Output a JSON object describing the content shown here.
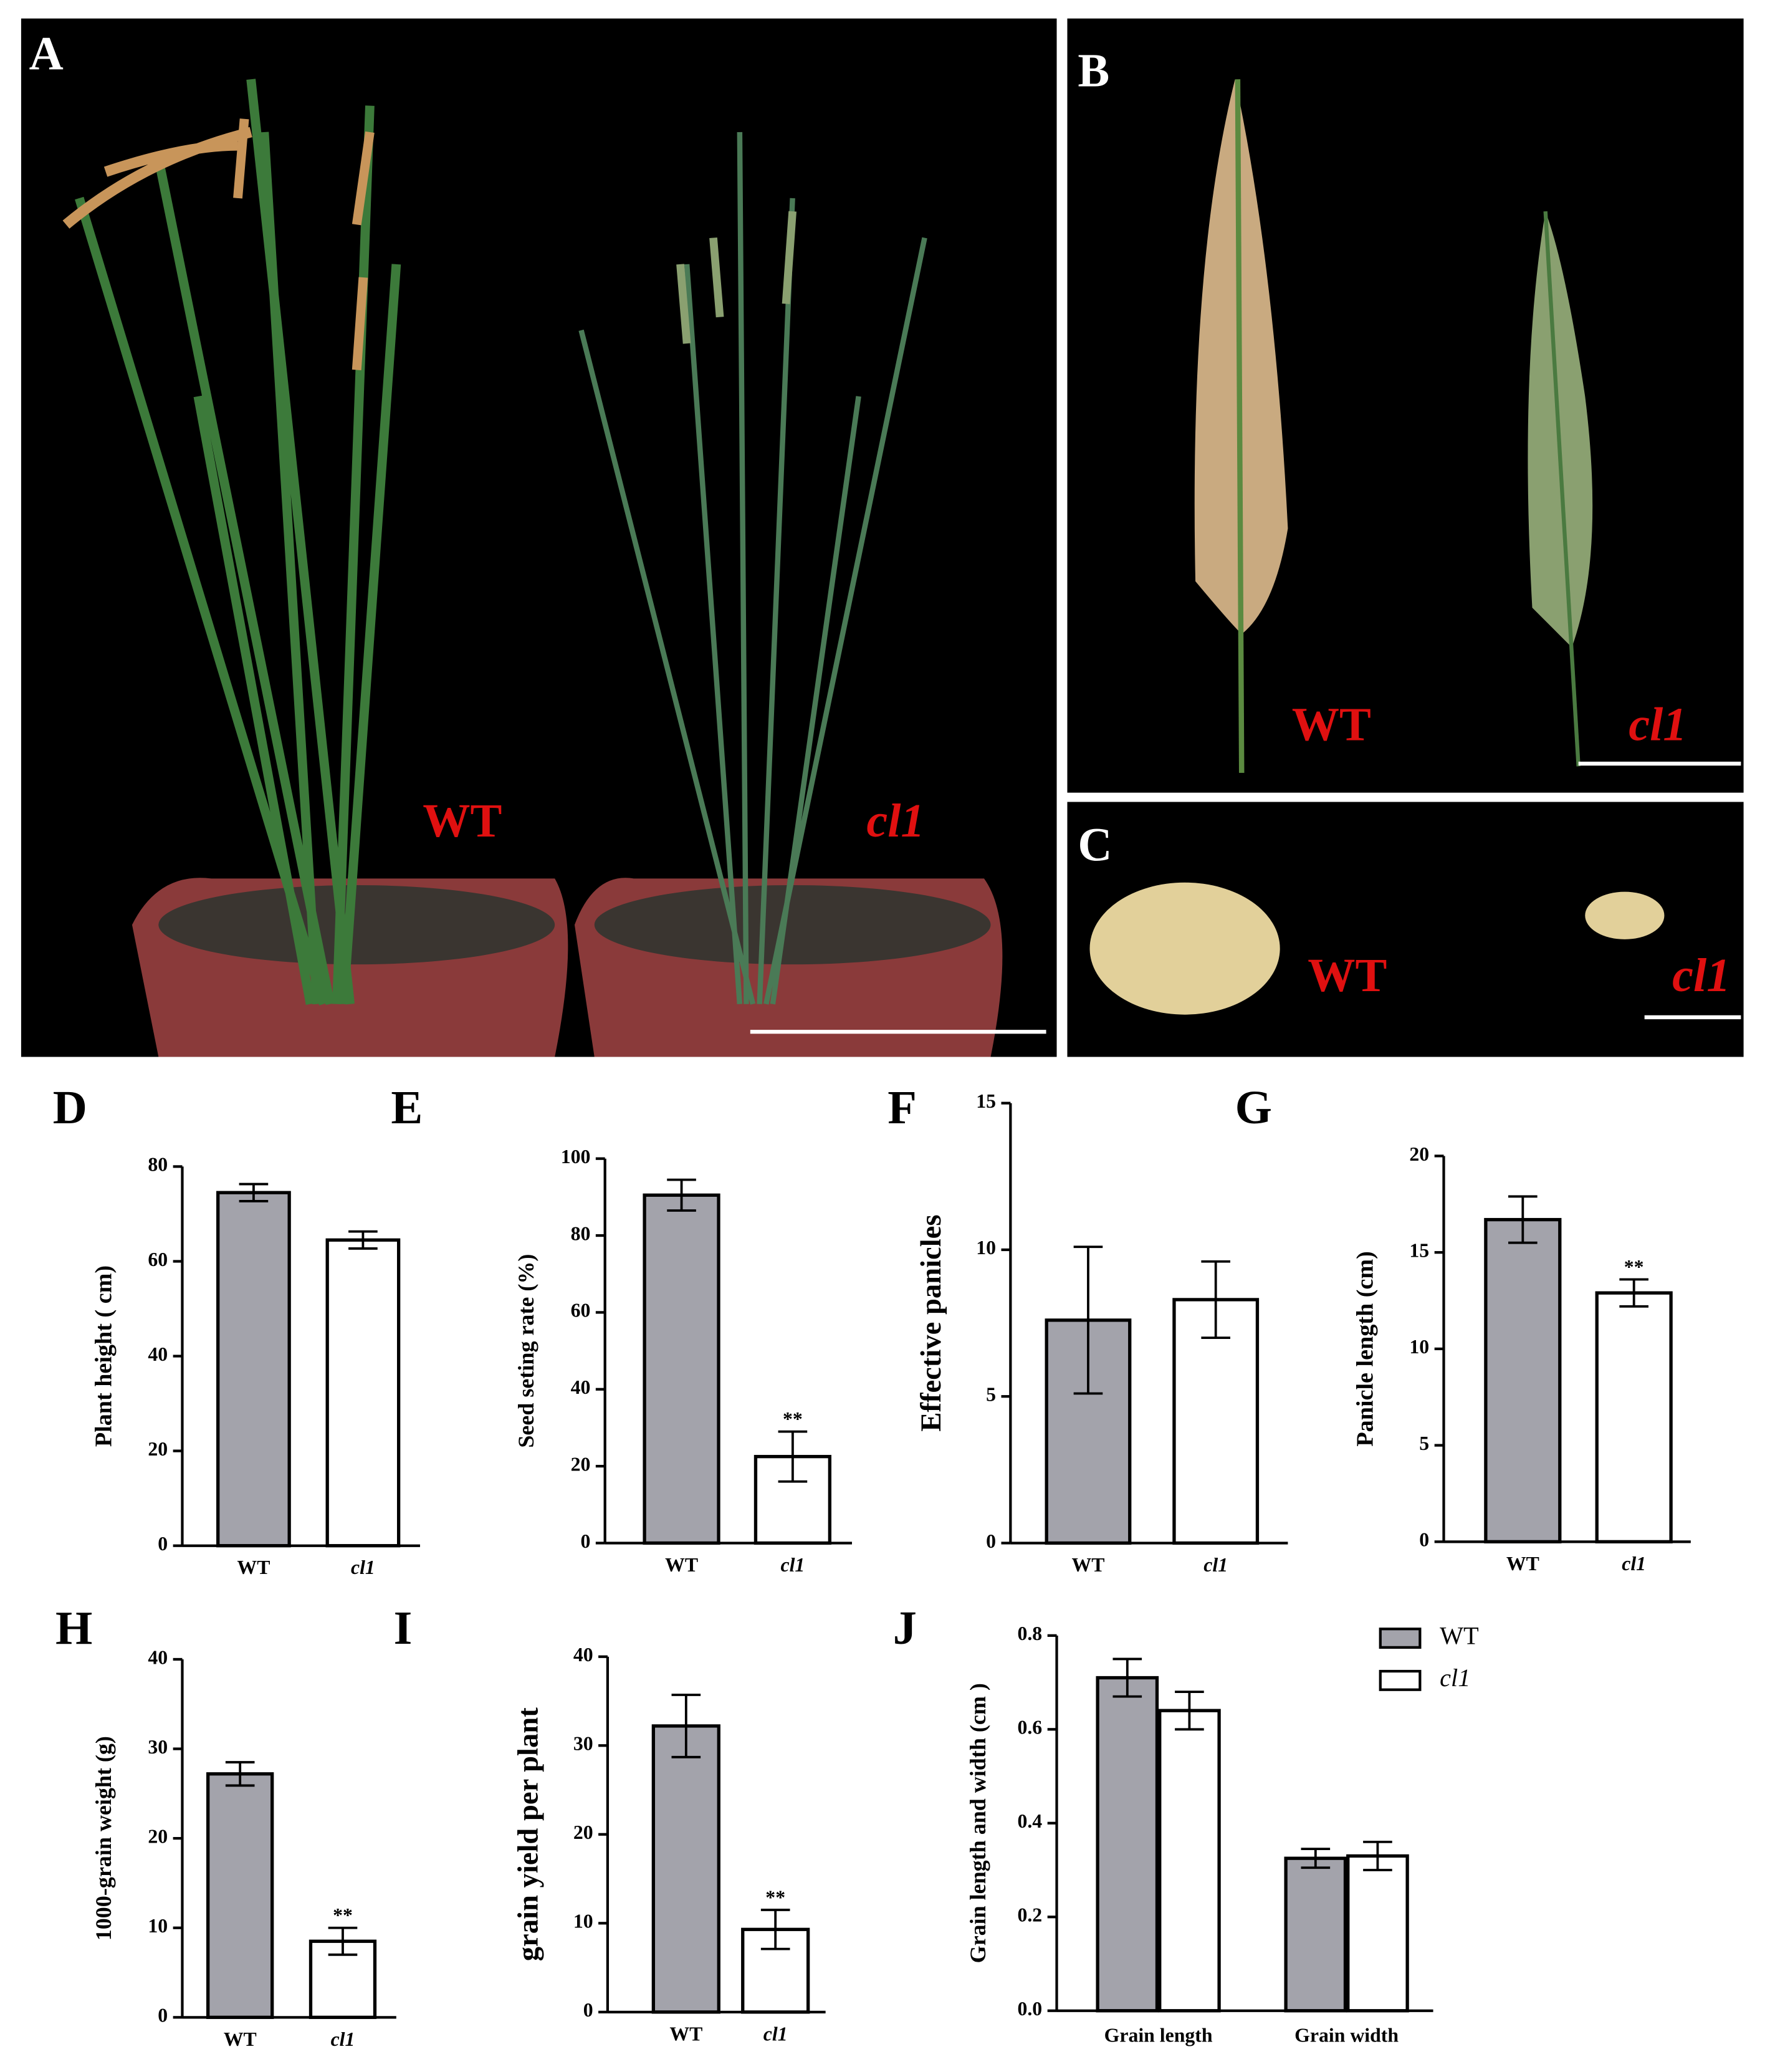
{
  "photos": [
    {
      "letter": "A",
      "labels": [
        "WT",
        "cl1"
      ]
    },
    {
      "letter": "B",
      "labels": [
        "WT",
        "cl1"
      ]
    },
    {
      "letter": "C",
      "labels": [
        "WT",
        "cl1"
      ]
    }
  ],
  "chart_data": [
    {
      "type": "bar",
      "panel": "D",
      "ylabel": "Plant height ( cm)",
      "categories": [
        "WT",
        "cl1"
      ],
      "values": [
        74.5,
        64.5
      ],
      "errors": [
        1.8,
        1.8
      ],
      "colors": [
        "#a3a3ab",
        "#ffffff"
      ],
      "ylim": [
        0,
        80
      ],
      "yticks": [
        0,
        20,
        40,
        60,
        80
      ]
    },
    {
      "type": "bar",
      "panel": "E",
      "ylabel": "Seed seting rate (%)",
      "categories": [
        "WT",
        "cl1"
      ],
      "values": [
        90.5,
        22.5
      ],
      "errors": [
        4,
        6.5
      ],
      "significance": [
        null,
        "**"
      ],
      "colors": [
        "#a3a3ab",
        "#ffffff"
      ],
      "ylim": [
        0,
        100
      ],
      "yticks": [
        0,
        20,
        40,
        60,
        80,
        100
      ]
    },
    {
      "type": "bar",
      "panel": "F",
      "ylabel": "Effective panicles",
      "categories": [
        "WT",
        "cl1"
      ],
      "values": [
        7.6,
        8.3
      ],
      "errors": [
        2.5,
        1.3
      ],
      "colors": [
        "#a3a3ab",
        "#ffffff"
      ],
      "ylim": [
        0,
        15
      ],
      "yticks": [
        0,
        5,
        10,
        15
      ]
    },
    {
      "type": "bar",
      "panel": "G",
      "ylabel": "Panicle length (cm)",
      "categories": [
        "WT",
        "cl1"
      ],
      "values": [
        16.7,
        12.9
      ],
      "errors": [
        1.2,
        0.7
      ],
      "significance": [
        null,
        "**"
      ],
      "colors": [
        "#a3a3ab",
        "#ffffff"
      ],
      "ylim": [
        0,
        20
      ],
      "yticks": [
        0,
        5,
        10,
        15,
        20
      ]
    },
    {
      "type": "bar",
      "panel": "H",
      "ylabel": "1000-grain weight (g)",
      "categories": [
        "WT",
        "cl1"
      ],
      "values": [
        27.2,
        8.5
      ],
      "errors": [
        1.3,
        1.5
      ],
      "significance": [
        null,
        "**"
      ],
      "colors": [
        "#a3a3ab",
        "#ffffff"
      ],
      "ylim": [
        0,
        40
      ],
      "yticks": [
        0,
        10,
        20,
        30,
        40
      ]
    },
    {
      "type": "bar",
      "panel": "I",
      "ylabel": "grain yield per plant",
      "categories": [
        "WT",
        "cl1"
      ],
      "values": [
        32.2,
        9.3
      ],
      "errors": [
        3.5,
        2.2
      ],
      "significance": [
        null,
        "**"
      ],
      "colors": [
        "#a3a3ab",
        "#ffffff"
      ],
      "ylim": [
        0,
        40
      ],
      "yticks": [
        0,
        10,
        20,
        30,
        40
      ]
    },
    {
      "type": "grouped-bar",
      "panel": "J",
      "ylabel": "Grain length and width (cm )",
      "categories": [
        "Grain length",
        "Grain width"
      ],
      "series": [
        {
          "name": "WT",
          "color": "#a3a3ab",
          "values": [
            0.71,
            0.325
          ],
          "errors": [
            0.04,
            0.02
          ]
        },
        {
          "name": "cl1",
          "color": "#ffffff",
          "values": [
            0.64,
            0.33
          ],
          "errors": [
            0.04,
            0.03
          ]
        }
      ],
      "ylim": [
        0,
        0.8
      ],
      "yticks": [
        {
          "value": 0,
          "label": "0.0"
        },
        0.2,
        0.4,
        0.6,
        0.8
      ]
    }
  ]
}
